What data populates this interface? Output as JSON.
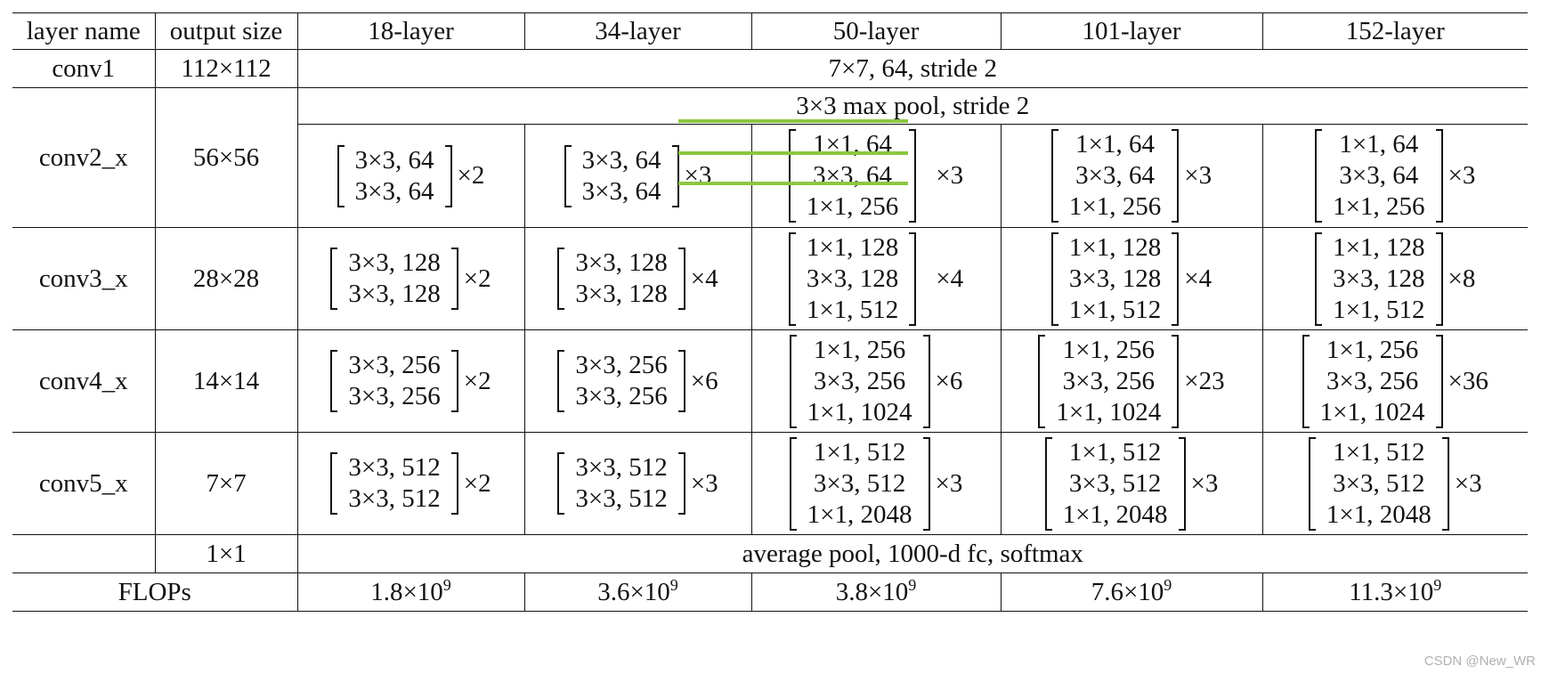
{
  "header": {
    "layer_name": "layer name",
    "output_size": "output size",
    "cols": [
      "18-layer",
      "34-layer",
      "50-layer",
      "101-layer",
      "152-layer"
    ]
  },
  "conv1": {
    "name": "conv1",
    "size": "112×112",
    "spec": "7×7, 64, stride 2"
  },
  "pool": {
    "spec": "3×3 max pool, stride 2"
  },
  "conv2": {
    "name": "conv2_x",
    "size": "56×56",
    "l18": [
      "3×3, 64",
      "3×3, 64"
    ],
    "l18_mult": "×2",
    "l34": [
      "3×3, 64",
      "3×3, 64"
    ],
    "l34_mult": "×3",
    "l50": [
      "1×1, 64",
      "3×3, 64",
      "1×1, 256"
    ],
    "l50_mult": "×3",
    "l101": [
      "1×1, 64",
      "3×3, 64",
      "1×1, 256"
    ],
    "l101_mult": "×3",
    "l152": [
      "1×1, 64",
      "3×3, 64",
      "1×1, 256"
    ],
    "l152_mult": "×3"
  },
  "conv3": {
    "name": "conv3_x",
    "size": "28×28",
    "l18": [
      "3×3, 128",
      "3×3, 128"
    ],
    "l18_mult": "×2",
    "l34": [
      "3×3, 128",
      "3×3, 128"
    ],
    "l34_mult": "×4",
    "l50": [
      "1×1, 128",
      "3×3, 128",
      "1×1, 512"
    ],
    "l50_mult": "×4",
    "l101": [
      "1×1, 128",
      "3×3, 128",
      "1×1, 512"
    ],
    "l101_mult": "×4",
    "l152": [
      "1×1, 128",
      "3×3, 128",
      "1×1, 512"
    ],
    "l152_mult": "×8"
  },
  "conv4": {
    "name": "conv4_x",
    "size": "14×14",
    "l18": [
      "3×3, 256",
      "3×3, 256"
    ],
    "l18_mult": "×2",
    "l34": [
      "3×3, 256",
      "3×3, 256"
    ],
    "l34_mult": "×6",
    "l50": [
      "1×1, 256",
      "3×3, 256",
      "1×1, 1024"
    ],
    "l50_mult": "×6",
    "l101": [
      "1×1, 256",
      "3×3, 256",
      "1×1, 1024"
    ],
    "l101_mult": "×23",
    "l152": [
      "1×1, 256",
      "3×3, 256",
      "1×1, 1024"
    ],
    "l152_mult": "×36"
  },
  "conv5": {
    "name": "conv5_x",
    "size": "7×7",
    "l18": [
      "3×3, 512",
      "3×3, 512"
    ],
    "l18_mult": "×2",
    "l34": [
      "3×3, 512",
      "3×3, 512"
    ],
    "l34_mult": "×3",
    "l50": [
      "1×1, 512",
      "3×3, 512",
      "1×1, 2048"
    ],
    "l50_mult": "×3",
    "l101": [
      "1×1, 512",
      "3×3, 512",
      "1×1, 2048"
    ],
    "l101_mult": "×3",
    "l152": [
      "1×1, 512",
      "3×3, 512",
      "1×1, 2048"
    ],
    "l152_mult": "×3"
  },
  "avg": {
    "size": "1×1",
    "spec": "average pool, 1000-d fc, softmax"
  },
  "flops": {
    "label": "FLOPs",
    "base": [
      "1.8×10",
      "3.6×10",
      "3.8×10",
      "7.6×10",
      "11.3×10"
    ],
    "exp": "9"
  },
  "watermark": "CSDN @New_WR",
  "highlight_color": "#8cc63f"
}
